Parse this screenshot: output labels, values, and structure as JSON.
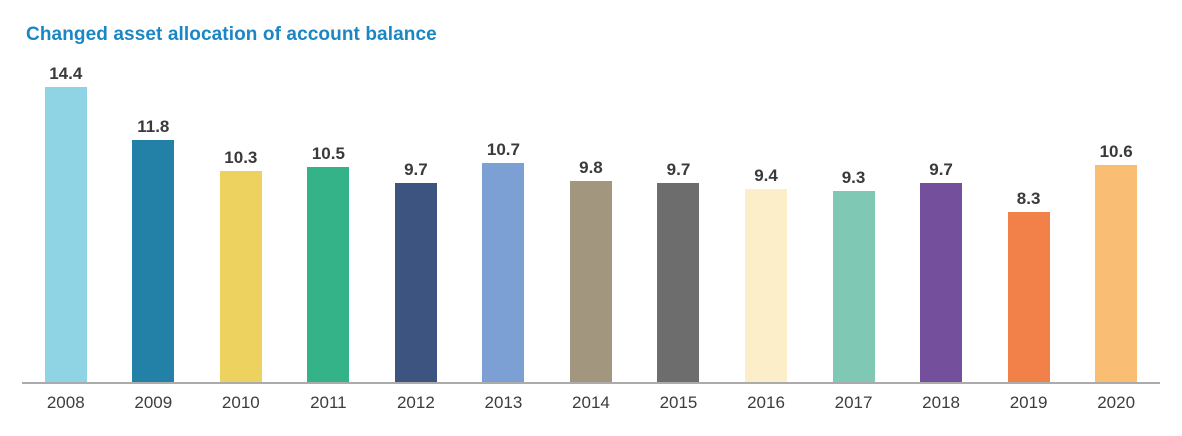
{
  "chart_data": {
    "type": "bar",
    "title": "Changed asset allocation of account balance",
    "categories": [
      "2008",
      "2009",
      "2010",
      "2011",
      "2012",
      "2013",
      "2014",
      "2015",
      "2016",
      "2017",
      "2018",
      "2019",
      "2020"
    ],
    "values": [
      14.4,
      11.8,
      10.3,
      10.5,
      9.7,
      10.7,
      9.8,
      9.7,
      9.4,
      9.3,
      9.7,
      8.3,
      10.6
    ],
    "bar_colors": [
      "#8ed4e4",
      "#2380a6",
      "#eed25f",
      "#34b288",
      "#3e5480",
      "#7da0d4",
      "#a2967f",
      "#6d6d6d",
      "#fbeec8",
      "#7fc9b4",
      "#744f9c",
      "#f28049",
      "#f9bd74"
    ],
    "xlabel": "",
    "ylabel": "",
    "ylim": [
      0,
      15
    ],
    "grid": false,
    "legend_position": "none",
    "value_labels_shown": true,
    "title_color": "#1a87c4",
    "axis_line_color": "#ababab"
  }
}
